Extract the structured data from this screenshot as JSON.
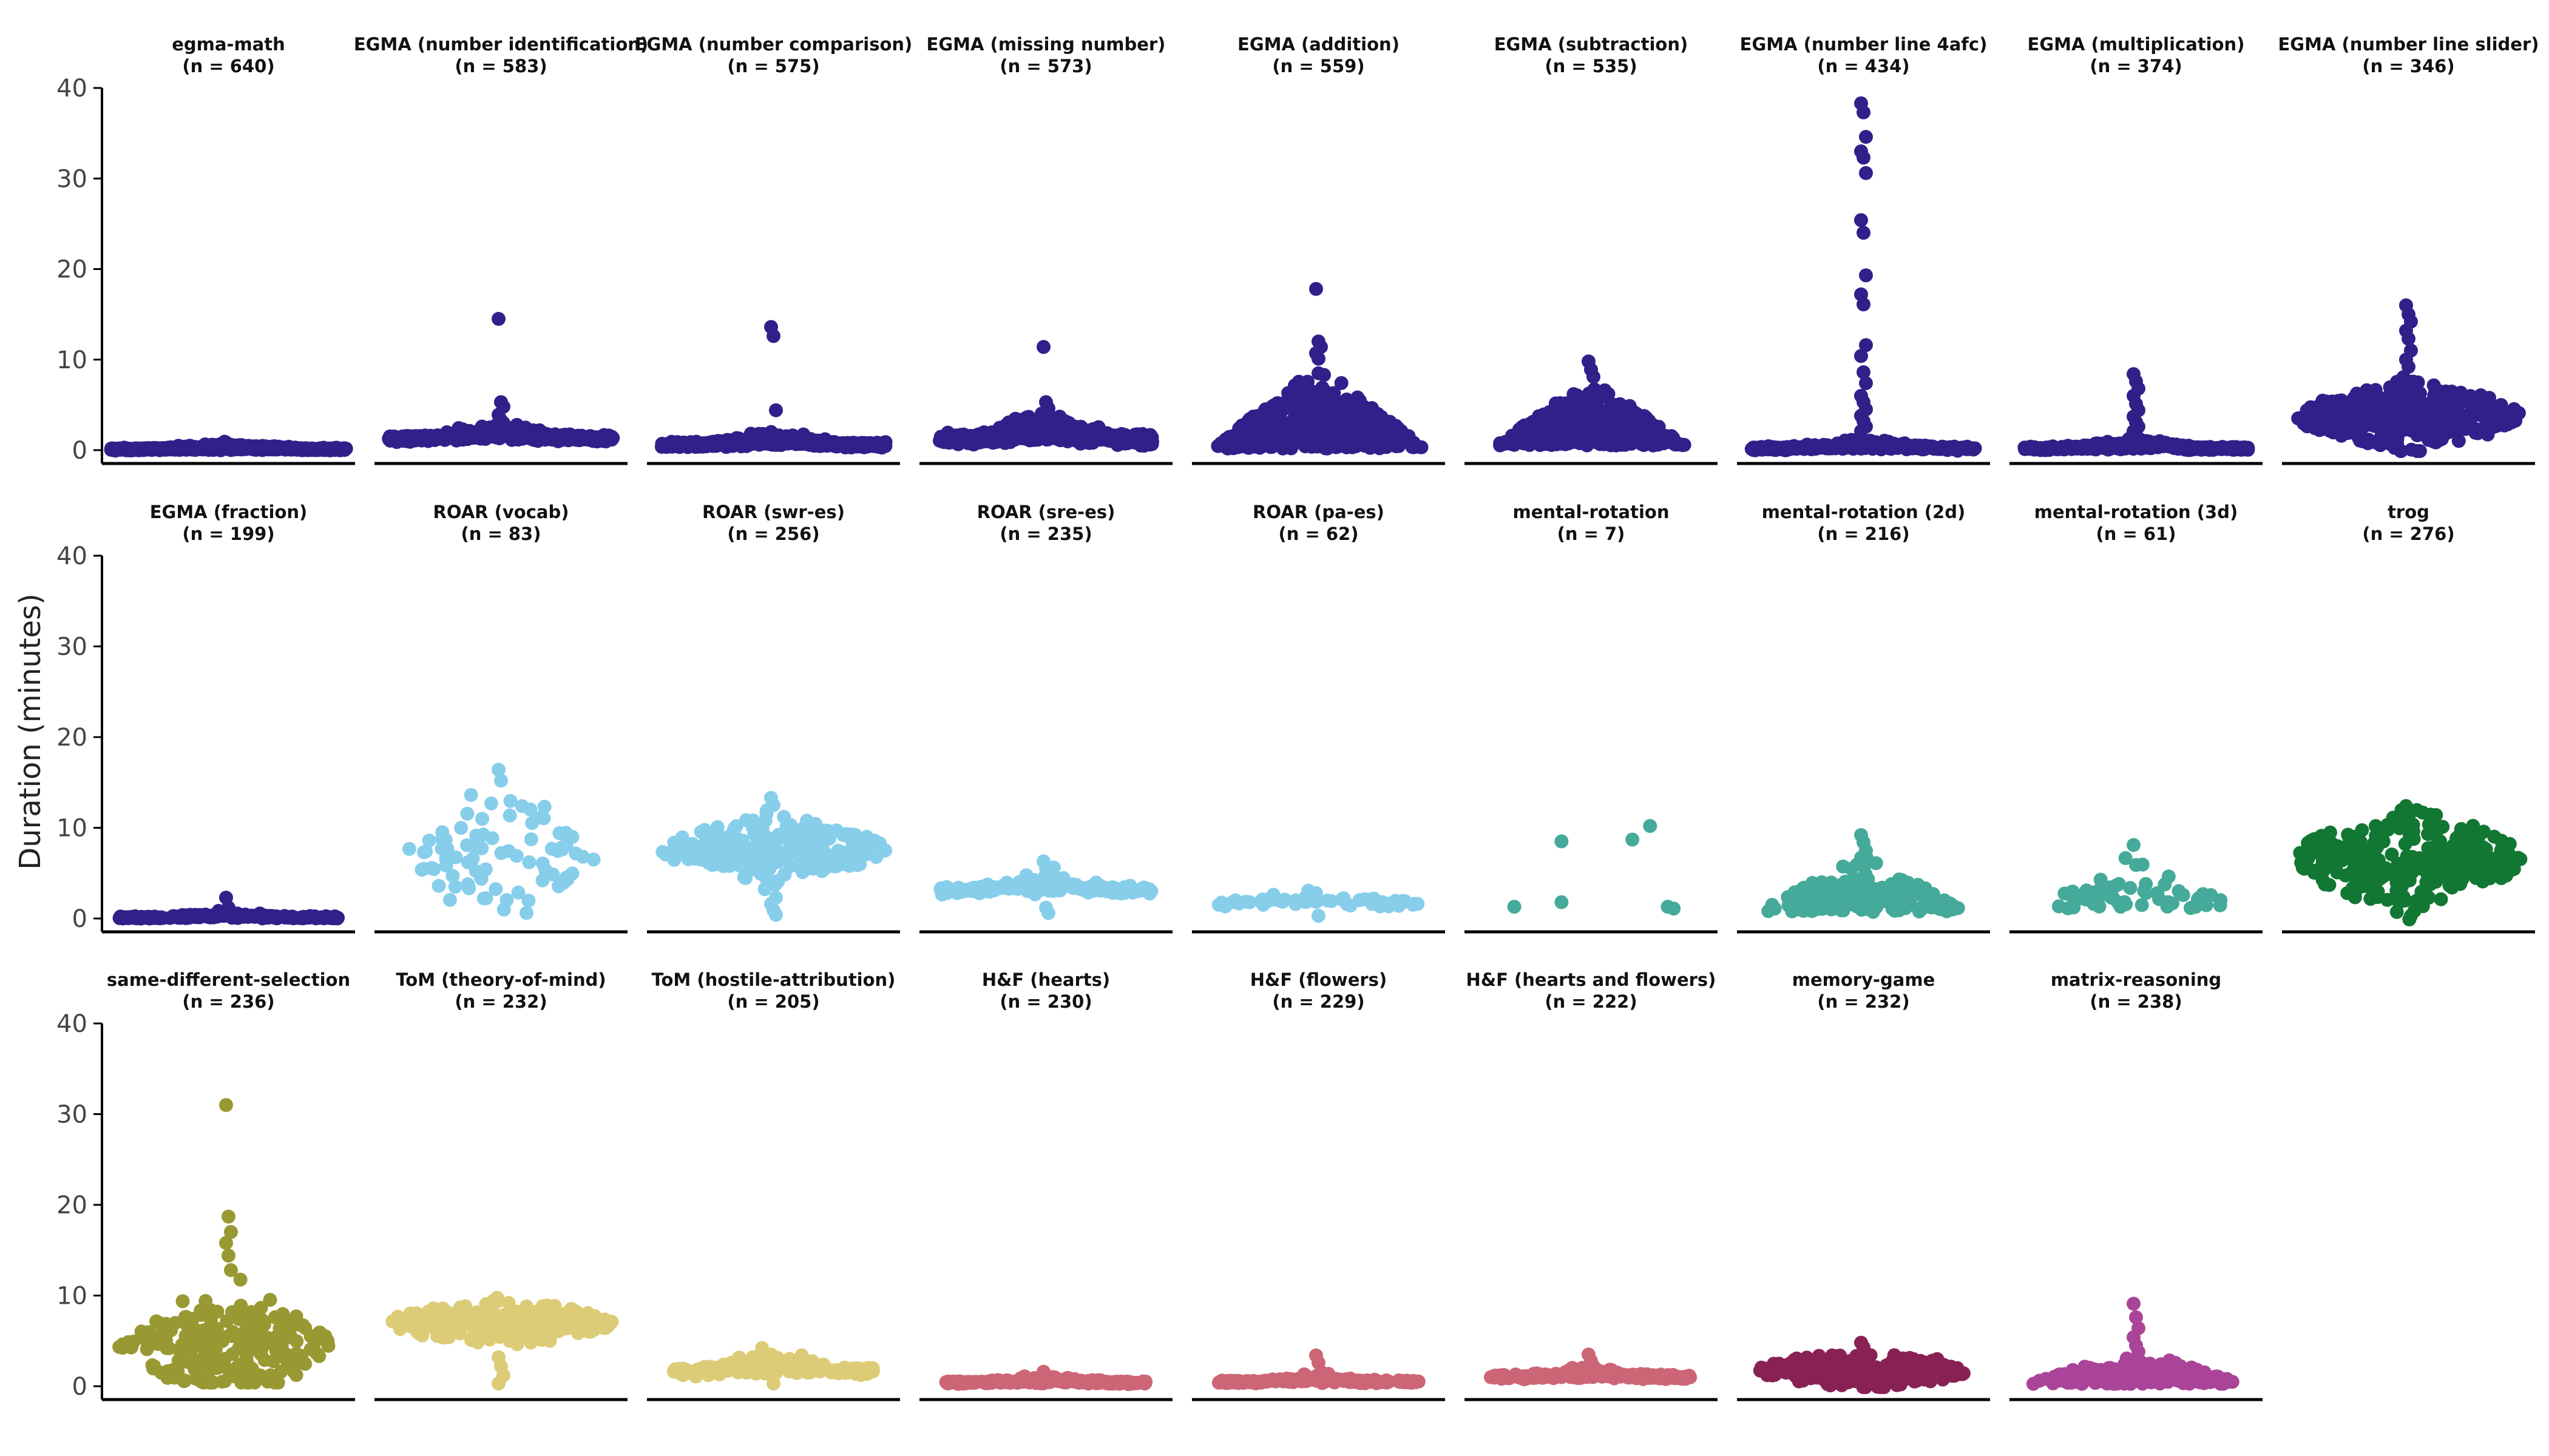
{
  "chart_data": {
    "type": "scatter",
    "style": "beeswarm",
    "ylabel": "Duration (minutes)",
    "ylim": [
      0,
      40
    ],
    "yticks": [
      0,
      10,
      20,
      30,
      40
    ],
    "grid": false,
    "legend": "none",
    "panels": [
      {
        "title": "egma-math",
        "n_label": "(n = 640)",
        "color": "#30208a",
        "n": 640,
        "row": 0,
        "col": 0,
        "shape": {
          "kind": "flat",
          "median": 0.1,
          "spread": 0.1,
          "halfwidth": 1.0
        },
        "outliers": []
      },
      {
        "title": "EGMA (number identification)",
        "n_label": "(n = 583)",
        "color": "#30208a",
        "n": 583,
        "row": 0,
        "col": 1,
        "shape": {
          "kind": "flat",
          "median": 1.3,
          "spread": 0.25,
          "halfwidth": 0.95
        },
        "outliers": [
          14.5,
          5.3,
          4.8,
          3.9,
          3.3,
          3.0,
          2.7
        ]
      },
      {
        "title": "EGMA (number comparison)",
        "n_label": "(n = 575)",
        "color": "#30208a",
        "n": 575,
        "row": 0,
        "col": 2,
        "shape": {
          "kind": "flat",
          "median": 0.6,
          "spread": 0.2,
          "halfwidth": 0.95
        },
        "outliers": [
          13.6,
          12.6,
          4.4,
          2.0,
          1.6
        ]
      },
      {
        "title": "EGMA (missing number)",
        "n_label": "(n = 573)",
        "color": "#30208a",
        "n": 573,
        "row": 0,
        "col": 3,
        "shape": {
          "kind": "flat",
          "median": 1.2,
          "spread": 0.45,
          "halfwidth": 0.9
        },
        "outliers": [
          11.4,
          5.3,
          4.6,
          3.9,
          3.2
        ]
      },
      {
        "title": "EGMA (addition)",
        "n_label": "(n = 559)",
        "color": "#30208a",
        "n": 559,
        "row": 0,
        "col": 4,
        "shape": {
          "kind": "mound",
          "median": 1.5,
          "spread": 2.2,
          "halfwidth": 0.9
        },
        "outliers": [
          17.8,
          12.0,
          11.4,
          10.7,
          10.1
        ]
      },
      {
        "title": "EGMA (subtraction)",
        "n_label": "(n = 535)",
        "color": "#30208a",
        "n": 535,
        "row": 0,
        "col": 5,
        "shape": {
          "kind": "mound",
          "median": 1.6,
          "spread": 1.8,
          "halfwidth": 0.8
        },
        "outliers": [
          9.8,
          8.9,
          8.1
        ]
      },
      {
        "title": "EGMA (number line 4afc)",
        "n_label": "(n = 434)",
        "color": "#30208a",
        "n": 434,
        "row": 0,
        "col": 6,
        "shape": {
          "kind": "flat",
          "median": 0.2,
          "spread": 0.15,
          "halfwidth": 0.95
        },
        "outliers": [
          38.3,
          37.3,
          34.6,
          33.0,
          32.3,
          30.6,
          25.4,
          24.0,
          19.3,
          17.2,
          16.1,
          11.6,
          10.4,
          8.6,
          7.4,
          6.0,
          5.3,
          4.5,
          3.8,
          3.2,
          2.6,
          2.1
        ]
      },
      {
        "title": "EGMA (multiplication)",
        "n_label": "(n = 374)",
        "color": "#30208a",
        "n": 374,
        "row": 0,
        "col": 7,
        "shape": {
          "kind": "flat",
          "median": 0.2,
          "spread": 0.15,
          "halfwidth": 0.95
        },
        "outliers": [
          8.4,
          7.6,
          6.8,
          6.0,
          5.1,
          4.4,
          3.7,
          3.1,
          2.6,
          2.1,
          1.7
        ]
      },
      {
        "title": "EGMA (number line slider)",
        "n_label": "(n = 346)",
        "color": "#30208a",
        "n": 346,
        "row": 0,
        "col": 8,
        "shape": {
          "kind": "bulge",
          "median": 3.8,
          "spread": 1.6,
          "halfwidth": 0.95
        },
        "outliers": [
          16.0,
          15.0,
          14.2,
          13.2,
          12.3,
          11.0,
          10.0,
          9.2
        ]
      },
      {
        "title": "EGMA (fraction)",
        "n_label": "(n = 199)",
        "color": "#30208a",
        "n": 199,
        "row": 1,
        "col": 0,
        "shape": {
          "kind": "flat",
          "median": 0.1,
          "spread": 0.1,
          "halfwidth": 0.95
        },
        "outliers": [
          2.3,
          1.2
        ]
      },
      {
        "title": "ROAR (vocab)",
        "n_label": "(n = 83)",
        "color": "#87ceeb",
        "n": 83,
        "row": 1,
        "col": 1,
        "shape": {
          "kind": "cloud",
          "median": 7.0,
          "spread": 3.5,
          "halfwidth": 0.85
        },
        "outliers": [
          16.4,
          15.2
        ]
      },
      {
        "title": "ROAR (swr-es)",
        "n_label": "(n = 256)",
        "color": "#87ceeb",
        "n": 256,
        "row": 1,
        "col": 2,
        "shape": {
          "kind": "bulge",
          "median": 7.6,
          "spread": 1.6,
          "halfwidth": 0.95
        },
        "outliers": [
          13.3,
          12.5,
          2.3,
          1.6,
          0.9,
          0.4
        ]
      },
      {
        "title": "ROAR (sre-es)",
        "n_label": "(n = 235)",
        "color": "#87ceeb",
        "n": 235,
        "row": 1,
        "col": 3,
        "shape": {
          "kind": "flat",
          "median": 3.1,
          "spread": 0.3,
          "halfwidth": 0.9
        },
        "outliers": [
          6.3,
          5.6,
          4.8,
          4.2,
          1.2,
          0.6
        ]
      },
      {
        "title": "ROAR (pa-es)",
        "n_label": "(n = 62)",
        "color": "#87ceeb",
        "n": 62,
        "row": 1,
        "col": 4,
        "shape": {
          "kind": "flat",
          "median": 1.6,
          "spread": 0.35,
          "halfwidth": 0.85
        },
        "outliers": [
          2.8,
          0.3
        ]
      },
      {
        "title": "mental-rotation",
        "n_label": "(n = 7)",
        "color": "#45aa99",
        "n": 7,
        "row": 1,
        "col": 5,
        "shape": {
          "kind": "fixed"
        },
        "points": [
          [
            -0.65,
            1.3
          ],
          [
            -0.25,
            8.5
          ],
          [
            -0.25,
            1.8
          ],
          [
            0.35,
            8.7
          ],
          [
            0.5,
            10.2
          ],
          [
            0.65,
            1.3
          ],
          [
            0.7,
            1.1
          ]
        ],
        "outliers": []
      },
      {
        "title": "mental-rotation (2d)",
        "n_label": "(n = 216)",
        "color": "#45aa99",
        "n": 216,
        "row": 1,
        "col": 6,
        "shape": {
          "kind": "mound",
          "median": 1.6,
          "spread": 1.5,
          "halfwidth": 0.9
        },
        "outliers": [
          9.2,
          8.4,
          7.5,
          6.7
        ]
      },
      {
        "title": "mental-rotation (3d)",
        "n_label": "(n = 61)",
        "color": "#45aa99",
        "n": 61,
        "row": 1,
        "col": 7,
        "shape": {
          "kind": "mound",
          "median": 2.0,
          "spread": 1.5,
          "halfwidth": 0.85
        },
        "outliers": [
          8.1,
          5.9
        ]
      },
      {
        "title": "trog",
        "n_label": "(n = 276)",
        "color": "#117733",
        "n": 276,
        "row": 1,
        "col": 8,
        "shape": {
          "kind": "bulge",
          "median": 6.5,
          "spread": 2.4,
          "halfwidth": 0.95
        },
        "outliers": [
          12.4,
          11.2,
          0.3
        ]
      },
      {
        "title": "same-different-selection",
        "n_label": "(n = 236)",
        "color": "#999933",
        "n": 236,
        "row": 2,
        "col": 0,
        "shape": {
          "kind": "cloud",
          "median": 4.5,
          "spread": 2.8,
          "halfwidth": 0.95
        },
        "outliers": [
          31.0,
          18.7,
          17.0,
          15.8,
          14.4,
          12.8
        ]
      },
      {
        "title": "ToM (theory-of-mind)",
        "n_label": "(n = 232)",
        "color": "#ddcc77",
        "n": 232,
        "row": 2,
        "col": 1,
        "shape": {
          "kind": "bulge",
          "median": 7.0,
          "spread": 1.1,
          "halfwidth": 0.95
        },
        "outliers": [
          3.2,
          2.2,
          1.2,
          0.3
        ]
      },
      {
        "title": "ToM (hostile-attribution)",
        "n_label": "(n = 205)",
        "color": "#ddcc77",
        "n": 205,
        "row": 2,
        "col": 2,
        "shape": {
          "kind": "flat",
          "median": 1.7,
          "spread": 0.4,
          "halfwidth": 0.85
        },
        "outliers": [
          3.3,
          0.3
        ]
      },
      {
        "title": "H&F (hearts)",
        "n_label": "(n = 230)",
        "color": "#cc6677",
        "n": 230,
        "row": 2,
        "col": 3,
        "shape": {
          "kind": "flat",
          "median": 0.4,
          "spread": 0.12,
          "halfwidth": 0.85
        },
        "outliers": [
          1.6,
          1.1
        ]
      },
      {
        "title": "H&F (flowers)",
        "n_label": "(n = 229)",
        "color": "#cc6677",
        "n": 229,
        "row": 2,
        "col": 4,
        "shape": {
          "kind": "flat",
          "median": 0.5,
          "spread": 0.12,
          "halfwidth": 0.85
        },
        "outliers": [
          3.4,
          2.6,
          1.6,
          1.1
        ]
      },
      {
        "title": "H&F (hearts and flowers)",
        "n_label": "(n = 222)",
        "color": "#cc6677",
        "n": 222,
        "row": 2,
        "col": 5,
        "shape": {
          "kind": "flat",
          "median": 1.0,
          "spread": 0.2,
          "halfwidth": 0.85
        },
        "outliers": [
          3.5,
          2.8,
          2.2
        ]
      },
      {
        "title": "memory-game",
        "n_label": "(n = 232)",
        "color": "#882255",
        "n": 232,
        "row": 2,
        "col": 6,
        "shape": {
          "kind": "bulge",
          "median": 1.8,
          "spread": 0.9,
          "halfwidth": 0.9
        },
        "outliers": [
          4.8,
          4.3
        ]
      },
      {
        "title": "matrix-reasoning",
        "n_label": "(n = 238)",
        "color": "#aa4499",
        "n": 238,
        "row": 2,
        "col": 7,
        "shape": {
          "kind": "mound",
          "median": 0.8,
          "spread": 0.9,
          "halfwidth": 0.9
        },
        "outliers": [
          9.1,
          7.6,
          6.4,
          5.4,
          4.5,
          3.8
        ]
      }
    ]
  }
}
